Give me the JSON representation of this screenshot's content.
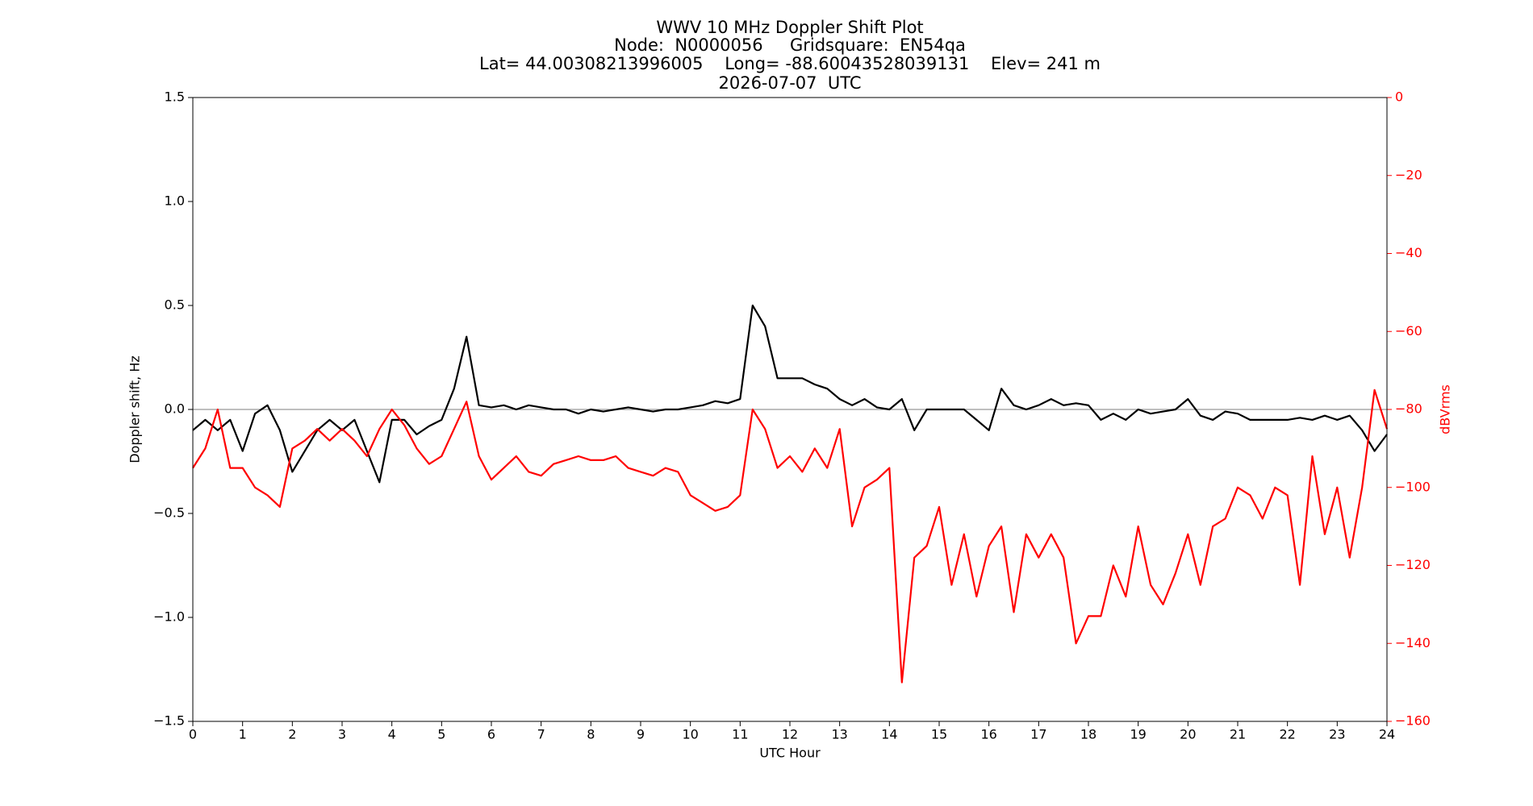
{
  "chart_data": {
    "type": "line",
    "title": [
      "WWV 10 MHz Doppler Shift Plot",
      "Node:  N0000056     Gridsquare:  EN54qa",
      "Lat= 44.00308213996005    Long= -88.60043528039131    Elev= 241 m",
      "2026-07-07  UTC"
    ],
    "x_label": "UTC Hour",
    "y_label": "Doppler shift, Hz",
    "y2_label": "dBVrms",
    "x": [
      0,
      0.25,
      0.5,
      0.75,
      1,
      1.25,
      1.5,
      1.75,
      2,
      2.25,
      2.5,
      2.75,
      3,
      3.25,
      3.5,
      3.75,
      4,
      4.25,
      4.5,
      4.75,
      5,
      5.25,
      5.5,
      5.75,
      6,
      6.25,
      6.5,
      6.75,
      7,
      7.25,
      7.5,
      7.75,
      8,
      8.25,
      8.5,
      8.75,
      9,
      9.25,
      9.5,
      9.75,
      10,
      10.25,
      10.5,
      10.75,
      11,
      11.25,
      11.5,
      11.75,
      12,
      12.25,
      12.5,
      12.75,
      13,
      13.25,
      13.5,
      13.75,
      14,
      14.25,
      14.5,
      14.75,
      15,
      15.25,
      15.5,
      15.75,
      16,
      16.25,
      16.5,
      16.75,
      17,
      17.25,
      17.5,
      17.75,
      18,
      18.25,
      18.5,
      18.75,
      19,
      19.25,
      19.5,
      19.75,
      20,
      20.25,
      20.5,
      20.75,
      21,
      21.25,
      21.5,
      21.75,
      22,
      22.25,
      22.5,
      22.75,
      23,
      23.25,
      23.5,
      23.75,
      24
    ],
    "series": [
      {
        "color": "#000000",
        "values": [
          -0.1,
          -0.05,
          -0.1,
          -0.05,
          -0.2,
          -0.02,
          0.02,
          -0.1,
          -0.3,
          -0.2,
          -0.1,
          -0.05,
          -0.1,
          -0.05,
          -0.2,
          -0.35,
          -0.05,
          -0.05,
          -0.12,
          -0.08,
          -0.05,
          0.1,
          0.35,
          0.02,
          0.01,
          0.02,
          0,
          0.02,
          0.01,
          0,
          0,
          -0.02,
          0,
          -0.01,
          0,
          0.01,
          0,
          -0.01,
          0,
          0,
          0.01,
          0.02,
          0.04,
          0.03,
          0.05,
          0.5,
          0.4,
          0.15,
          0.15,
          0.15,
          0.12,
          0.1,
          0.05,
          0.02,
          0.05,
          0.01,
          0,
          0.05,
          -0.1,
          0,
          0,
          0,
          0,
          -0.05,
          -0.1,
          0.1,
          0.02,
          0,
          0.02,
          0.05,
          0.02,
          0.03,
          0.02,
          -0.05,
          -0.02,
          -0.05,
          0,
          -0.02,
          -0.01,
          0,
          0.05,
          -0.03,
          -0.05,
          -0.01,
          -0.02,
          -0.05,
          -0.05,
          -0.05,
          -0.05,
          -0.04,
          -0.05,
          -0.03,
          -0.05,
          -0.03,
          -0.1,
          -0.2,
          -0.12
        ]
      },
      {
        "color": "#ff0000",
        "axis": "y2",
        "values": [
          -95,
          -90,
          -80,
          -95,
          -95,
          -100,
          -102,
          -105,
          -90,
          -88,
          -85,
          -88,
          -85,
          -88,
          -92,
          -85,
          -80,
          -84,
          -90,
          -94,
          -92,
          -85,
          -78,
          -92,
          -98,
          -95,
          -92,
          -96,
          -97,
          -94,
          -93,
          -92,
          -93,
          -93,
          -92,
          -95,
          -96,
          -97,
          -95,
          -96,
          -102,
          -104,
          -106,
          -105,
          -102,
          -80,
          -85,
          -95,
          -92,
          -96,
          -90,
          -95,
          -85,
          -110,
          -100,
          -98,
          -95,
          -150,
          -118,
          -115,
          -105,
          -125,
          -112,
          -128,
          -115,
          -110,
          -132,
          -112,
          -118,
          -112,
          -118,
          -140,
          -133,
          -133,
          -120,
          -128,
          -110,
          -125,
          -130,
          -122,
          -112,
          -125,
          -110,
          -108,
          -100,
          -102,
          -108,
          -100,
          -102,
          -125,
          -92,
          -112,
          -100,
          -118,
          -100,
          -75,
          -85
        ]
      }
    ],
    "reference_line": 0,
    "xlim": [
      0,
      24
    ],
    "xticks": [
      0,
      1,
      2,
      3,
      4,
      5,
      6,
      7,
      8,
      9,
      10,
      11,
      12,
      13,
      14,
      15,
      16,
      17,
      18,
      19,
      20,
      21,
      22,
      23,
      24
    ],
    "ylim": [
      -1.5,
      1.5
    ],
    "yticks": [
      {
        "value": -1.5,
        "label": "−1.5"
      },
      {
        "value": -1.0,
        "label": "−1.0"
      },
      {
        "value": -0.5,
        "label": "−0.5"
      },
      {
        "value": 0,
        "label": "0.0"
      },
      0.5,
      {
        "value": 1.0,
        "label": "1.0"
      },
      {
        "value": 1.5,
        "label": "1.5"
      }
    ],
    "y2lim": [
      -160,
      0
    ],
    "y2ticks": [
      {
        "value": -160,
        "label": "−160"
      },
      {
        "value": -140,
        "label": "−140"
      },
      {
        "value": -120,
        "label": "−120"
      },
      {
        "value": -100,
        "label": "−100"
      },
      {
        "value": -80,
        "label": "−80"
      },
      {
        "value": -60,
        "label": "−60"
      },
      {
        "value": -40,
        "label": "−40"
      },
      {
        "value": -20,
        "label": "−20"
      },
      0
    ],
    "y2_color": "#ff0000"
  }
}
